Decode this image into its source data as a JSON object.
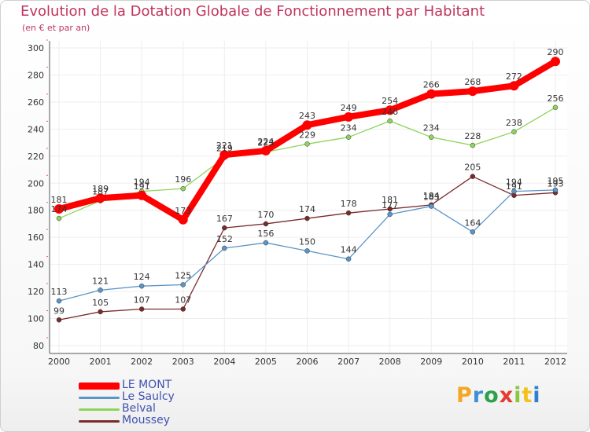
{
  "header": {
    "title": "Evolution de la Dotation Globale de Fonctionnement par Habitant",
    "subtitle": "(en € et par an)"
  },
  "brand": {
    "logo_text": "Proxiti",
    "logo_colors": [
      "#f5a623",
      "#3d8fd6",
      "#2aa14a",
      "#e63b2e",
      "#8cc63f",
      "#f3c21a",
      "#2f7fd0"
    ]
  },
  "chart_data": {
    "type": "line",
    "title": "Evolution de la Dotation Globale de Fonctionnement par Habitant",
    "subtitle": "(en € et par an)",
    "xlabel": "",
    "ylabel": "",
    "x": [
      "2000",
      "2001",
      "2002",
      "2003",
      "2004",
      "2005",
      "2006",
      "2007",
      "2008",
      "2009",
      "2010",
      "2011",
      "2012"
    ],
    "y_ticks": [
      80,
      100,
      120,
      140,
      160,
      180,
      200,
      220,
      240,
      260,
      280,
      300
    ],
    "ylim": [
      80,
      300
    ],
    "grid": true,
    "legend_position": "bottom-left",
    "series": [
      {
        "name": "LE MONT",
        "color": "#ff0000",
        "values": [
          181,
          189,
          191,
          173,
          221,
          224,
          243,
          249,
          254,
          266,
          268,
          272,
          290
        ]
      },
      {
        "name": "Le Saulcy",
        "color": "#5b95c8",
        "values": [
          113,
          121,
          124,
          125,
          152,
          156,
          150,
          144,
          177,
          183,
          164,
          194,
          195
        ]
      },
      {
        "name": "Belval",
        "color": "#8ed45a",
        "values": [
          174,
          187,
          194,
          196,
          219,
          223,
          229,
          234,
          246,
          234,
          228,
          238,
          256
        ]
      },
      {
        "name": "Moussey",
        "color": "#7a2a2a",
        "values": [
          99,
          105,
          107,
          107,
          167,
          170,
          174,
          178,
          181,
          184,
          205,
          191,
          193
        ]
      }
    ]
  }
}
